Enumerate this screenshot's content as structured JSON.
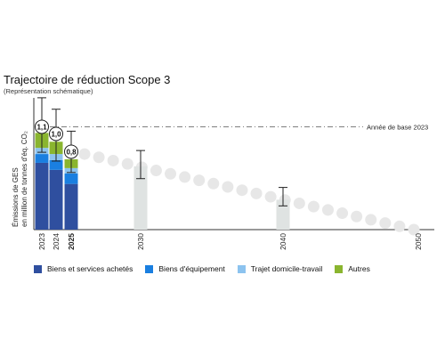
{
  "title": "Trajectoire de réduction Scope 3",
  "subtitle": "(Représentation schématique)",
  "colors": {
    "biens_services": "#2f4f9f",
    "biens_equipement": "#1a7fe0",
    "trajet": "#8cc3ef",
    "autres": "#8ab52f",
    "target_bar": "#dfe3e2",
    "dots": "#e7e7e7",
    "baseline": "#555555"
  },
  "chart_data": {
    "type": "bar",
    "title": "Trajectoire de réduction Scope 3",
    "subtitle": "(Représentation schématique)",
    "ylabel_line1": "Émissions de GES",
    "ylabel_line2": "en million de tonnes d'éq. CO₂",
    "categories": [
      "2023",
      "2024",
      "2025",
      "2030",
      "2040",
      "2050"
    ],
    "ylim": [
      0,
      1.6
    ],
    "grid": false,
    "legend_position": "bottom",
    "stacked_series": [
      {
        "name": "Biens et services achetés",
        "color": "#2f4f9f",
        "values": [
          0.76,
          0.68,
          0.52
        ]
      },
      {
        "name": "Biens d'équipement",
        "color": "#1a7fe0",
        "values": [
          0.1,
          0.11,
          0.12
        ]
      },
      {
        "name": "Trajet domicile-travail",
        "color": "#8cc3ef",
        "values": [
          0.07,
          0.07,
          0.06
        ]
      },
      {
        "name": "Autres",
        "color": "#8ab52f",
        "values": [
          0.17,
          0.14,
          0.1
        ]
      }
    ],
    "totals": [
      {
        "year": "2023",
        "label": "1,1",
        "value": 1.1,
        "err": [
          0.88,
          1.5
        ]
      },
      {
        "year": "2024",
        "label": "1,0",
        "value": 1.0,
        "err": [
          0.78,
          1.37
        ]
      },
      {
        "year": "2025",
        "label": "0,8",
        "value": 0.8,
        "err": [
          0.65,
          1.12
        ]
      }
    ],
    "targets": [
      {
        "year": "2030",
        "value": 0.72,
        "err": [
          0.58,
          0.9
        ]
      },
      {
        "year": "2040",
        "value": 0.34,
        "err": [
          0.27,
          0.48
        ]
      }
    ],
    "trajectory_x": [
      "2025",
      "2050"
    ],
    "trajectory_y": [
      0.86,
      0.0
    ],
    "baseline": {
      "value": 1.17,
      "label": "Année de base 2023"
    }
  }
}
